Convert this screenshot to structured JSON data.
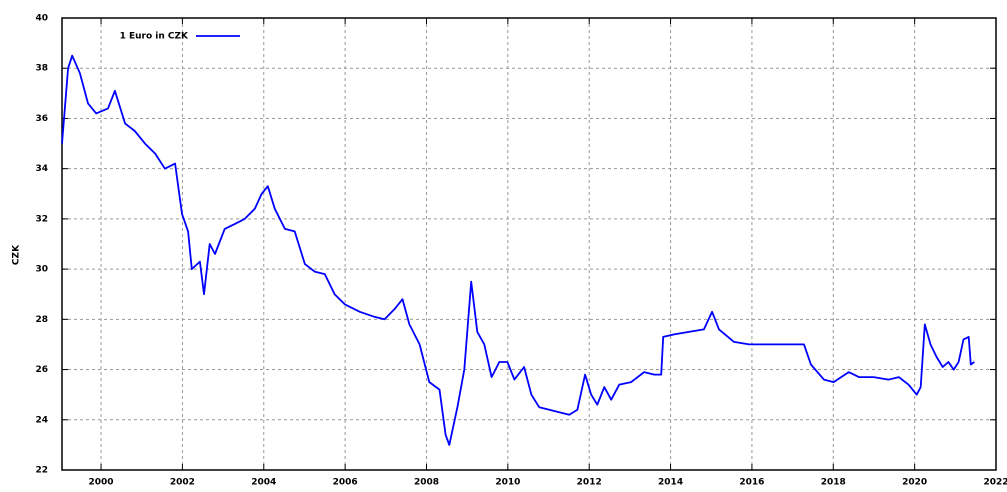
{
  "chart_data": {
    "type": "line",
    "ylabel": "CZK",
    "legend": "top-left",
    "grid": true,
    "xlim": [
      1999.04,
      2022
    ],
    "xticks": [
      2000,
      2002,
      2004,
      2006,
      2008,
      2010,
      2012,
      2014,
      2016,
      2018,
      2020,
      2022
    ],
    "ylim": [
      22,
      40
    ],
    "yticks": [
      22,
      24,
      26,
      28,
      30,
      32,
      34,
      36,
      38,
      40
    ],
    "x": [
      1999.04,
      1999.19,
      1999.29,
      1999.48,
      1999.68,
      1999.88,
      2000.17,
      2000.34,
      2000.59,
      2000.83,
      2001.08,
      2001.33,
      2001.57,
      2001.82,
      2001.99,
      2002.14,
      2002.23,
      2002.43,
      2002.53,
      2002.67,
      2002.8,
      2003.04,
      2003.29,
      2003.53,
      2003.78,
      2003.95,
      2004.1,
      2004.27,
      2004.52,
      2004.76,
      2005.01,
      2005.25,
      2005.5,
      2005.74,
      2005.99,
      2006.36,
      2006.72,
      2006.97,
      2007.21,
      2007.41,
      2007.58,
      2007.83,
      2008.07,
      2008.32,
      2008.47,
      2008.56,
      2008.76,
      2008.93,
      2009.1,
      2009.25,
      2009.42,
      2009.6,
      2009.79,
      2009.99,
      2010.16,
      2010.4,
      2010.58,
      2010.77,
      2011.02,
      2011.26,
      2011.51,
      2011.71,
      2011.9,
      2012.05,
      2012.2,
      2012.37,
      2012.54,
      2012.74,
      2013.03,
      2013.35,
      2013.6,
      2013.77,
      2013.82,
      2014.09,
      2014.45,
      2014.82,
      2015.02,
      2015.19,
      2015.56,
      2015.93,
      2016.42,
      2016.91,
      2017.28,
      2017.45,
      2017.77,
      2018.01,
      2018.38,
      2018.63,
      2018.99,
      2019.36,
      2019.61,
      2019.85,
      2020.05,
      2020.15,
      2020.25,
      2020.39,
      2020.54,
      2020.69,
      2020.83,
      2020.96,
      2021.08,
      2021.2,
      2021.33,
      2021.38,
      2021.47
    ],
    "series": [
      {
        "name": "1 Euro in CZK",
        "color": "#0000ff",
        "values": [
          35.0,
          38.0,
          38.5,
          37.8,
          36.6,
          36.2,
          36.4,
          37.1,
          35.8,
          35.5,
          35.0,
          34.6,
          34.0,
          34.2,
          32.2,
          31.5,
          30.0,
          30.3,
          29.0,
          31.0,
          30.6,
          31.6,
          31.8,
          32.0,
          32.4,
          33.0,
          33.3,
          32.4,
          31.6,
          31.5,
          30.2,
          29.9,
          29.8,
          29.0,
          28.6,
          28.3,
          28.1,
          28.0,
          28.4,
          28.8,
          27.8,
          27.0,
          25.5,
          25.2,
          23.4,
          23.0,
          24.5,
          26.0,
          29.5,
          27.5,
          27.0,
          25.7,
          26.3,
          26.3,
          25.6,
          26.1,
          25.0,
          24.5,
          24.4,
          24.3,
          24.2,
          24.4,
          25.8,
          25.0,
          24.6,
          25.3,
          24.8,
          25.4,
          25.5,
          25.9,
          25.8,
          25.8,
          27.3,
          27.4,
          27.5,
          27.6,
          28.3,
          27.6,
          27.1,
          27.0,
          27.0,
          27.0,
          27.0,
          26.2,
          25.6,
          25.5,
          25.9,
          25.7,
          25.7,
          25.6,
          25.7,
          25.4,
          25.0,
          25.3,
          27.8,
          27.0,
          26.5,
          26.1,
          26.3,
          26.0,
          26.3,
          27.2,
          27.3,
          26.2,
          26.3
        ]
      }
    ]
  }
}
